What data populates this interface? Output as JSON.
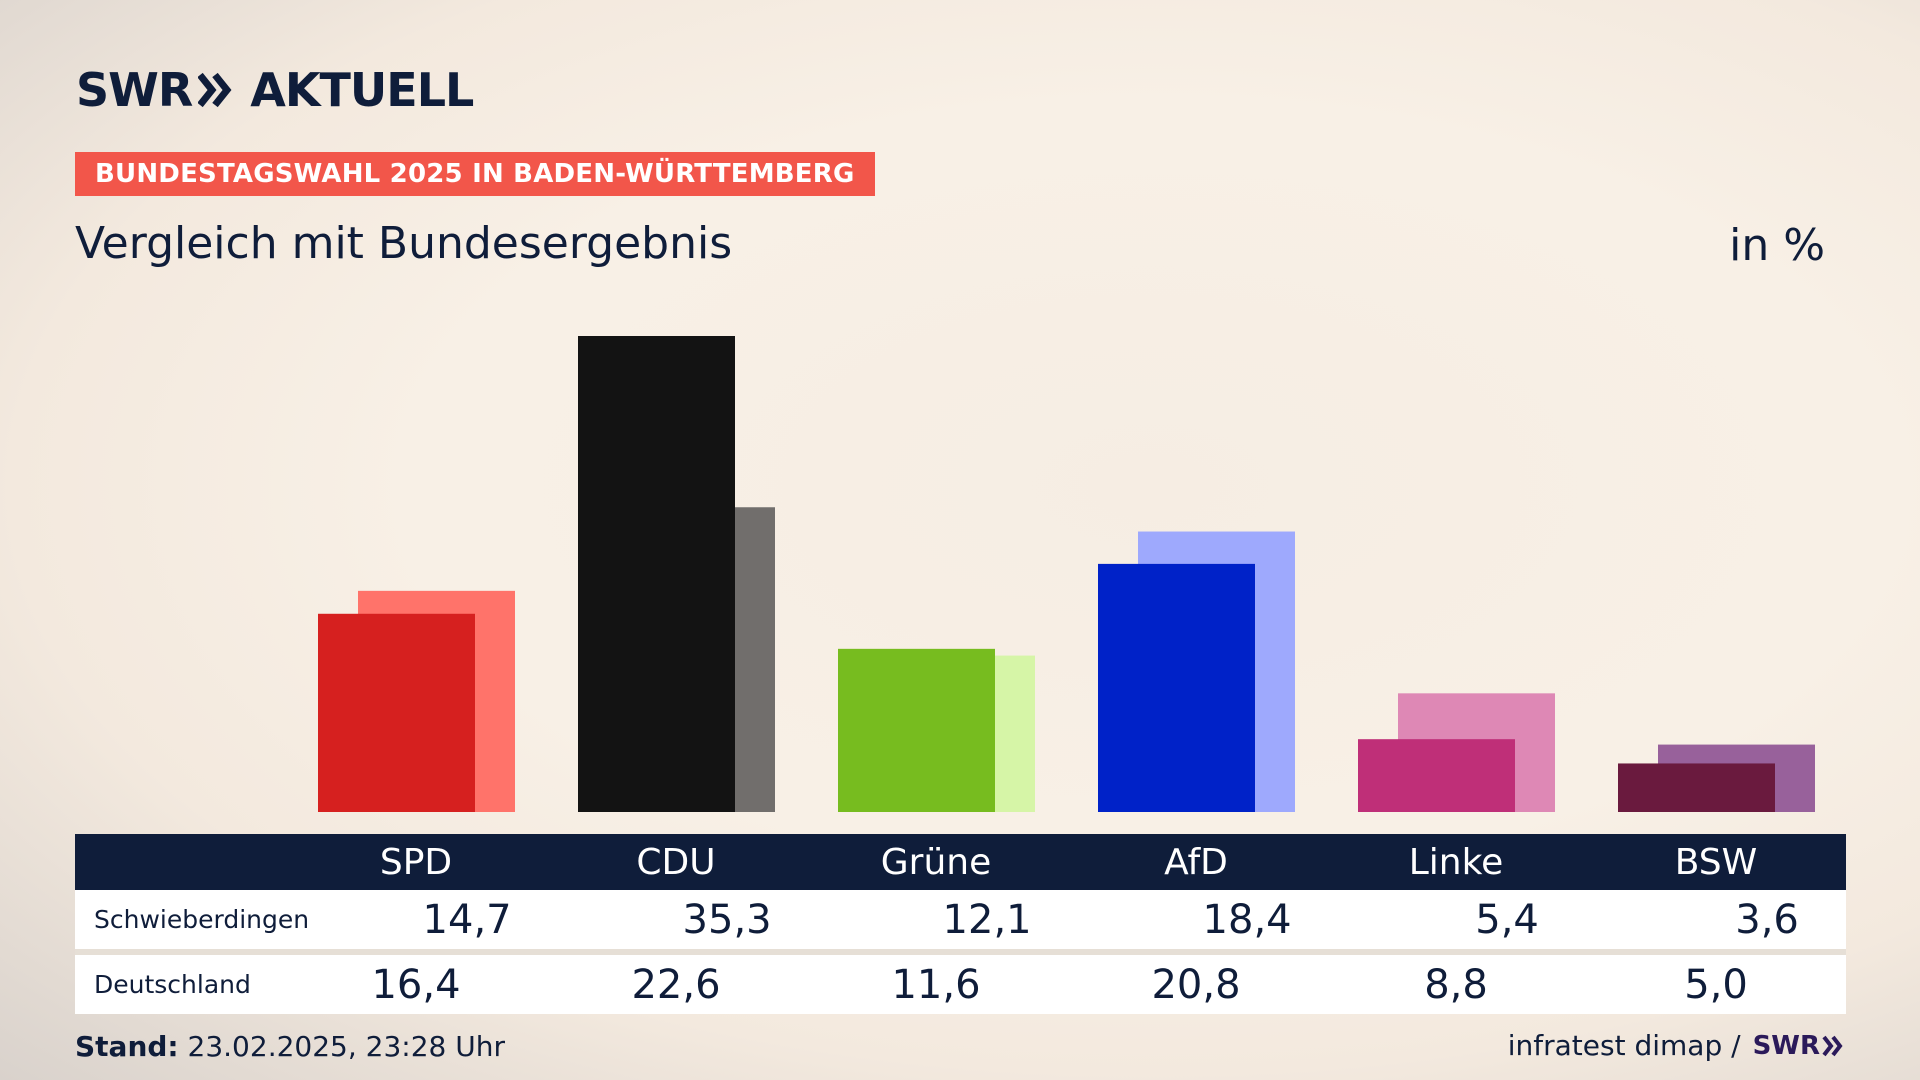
{
  "header": {
    "logo": "SWR AKTUELL",
    "logo_left": "SWR",
    "logo_right": "AKTUELL",
    "badge": "BUNDESTAGSWAHL 2025 IN BADEN-WÜRTTEMBERG",
    "subtitle": "Vergleich mit Bundesergebnis",
    "unit": "in %"
  },
  "table": {
    "rows": [
      {
        "label": "Schwieberdingen"
      },
      {
        "label": "Deutschland"
      }
    ]
  },
  "footer": {
    "stand_label": "Stand:",
    "stand_value": "23.02.2025, 23:28 Uhr",
    "source": "infratest dimap /",
    "source_logo": "SWR"
  },
  "chart_data": {
    "type": "bar",
    "categories": [
      "SPD",
      "CDU",
      "Grüne",
      "AfD",
      "Linke",
      "BSW"
    ],
    "series": [
      {
        "name": "Schwieberdingen",
        "values": [
          14.7,
          35.3,
          12.1,
          18.4,
          5.4,
          3.6
        ]
      },
      {
        "name": "Deutschland",
        "values": [
          16.4,
          22.6,
          11.6,
          20.8,
          8.8,
          5.0
        ]
      }
    ],
    "display_values": [
      [
        "14,7",
        "35,3",
        "12,1",
        "18,4",
        "5,4",
        "3,6"
      ],
      [
        "16,4",
        "22,6",
        "11,6",
        "20,8",
        "8,8",
        "5,0"
      ]
    ],
    "colors": {
      "primary": [
        "#d6201f",
        "#131313",
        "#77bc1f",
        "#0022c8",
        "#bf2f78",
        "#6a1a3e"
      ],
      "secondary": [
        "#ff736a",
        "#716e6c",
        "#d6f5a7",
        "#9ea9fd",
        "#de88b5",
        "#98619b"
      ]
    },
    "ylim": [
      0,
      36
    ],
    "legend": "table"
  }
}
